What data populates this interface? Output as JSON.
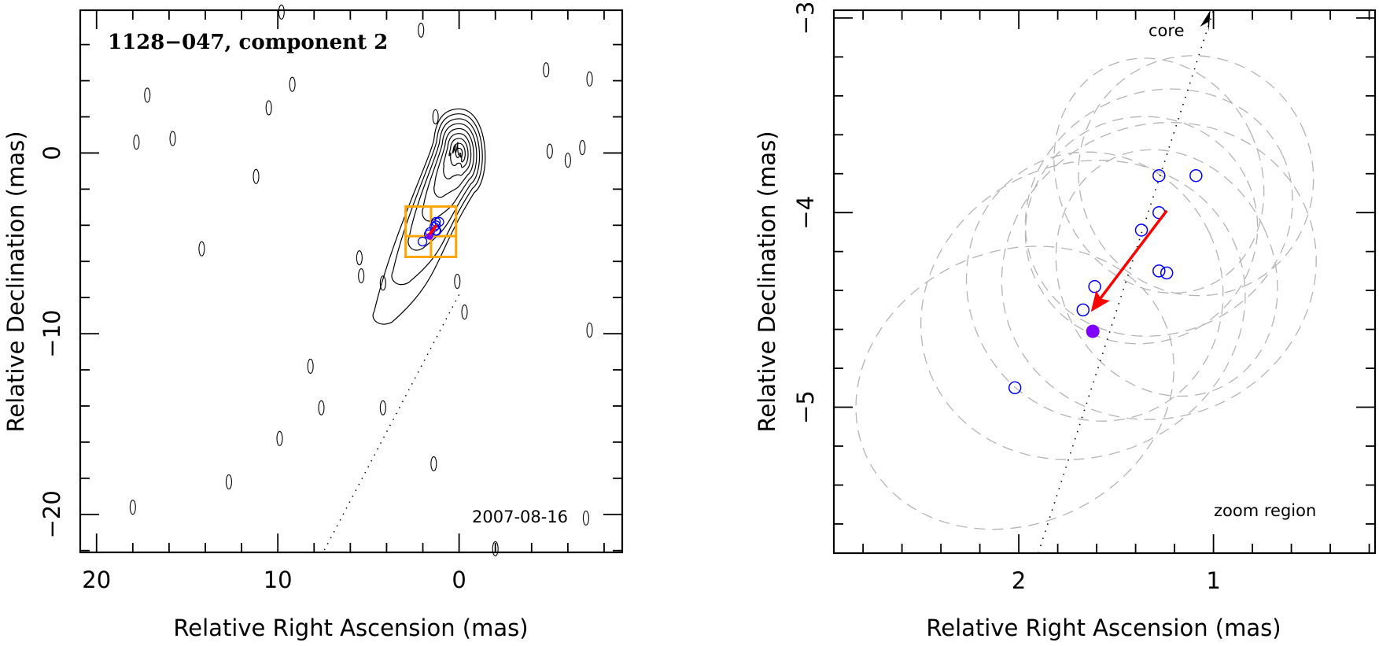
{
  "chart_data": [
    {
      "type": "scatter",
      "name": "overview-map",
      "title": "1128−047, component 2",
      "xlabel": "Relative Right Ascension (mas)",
      "ylabel": "Relative Declination (mas)",
      "xlim": [
        20.9,
        -9.0
      ],
      "ylim": [
        -22.1,
        7.9
      ],
      "xticks": [
        20,
        10,
        0
      ],
      "xtick_labels": [
        "20",
        "10",
        "0"
      ],
      "xminor_step": 2,
      "yticks": [
        0,
        -10,
        -20
      ],
      "ytick_labels": [
        "0",
        "−10",
        "−20"
      ],
      "yminor_step": 2,
      "annotation": "2007-08-16",
      "core": {
        "x": 0,
        "y": 0
      },
      "contour_levels": 9,
      "jet_direction_line": {
        "from": [
          0,
          0
        ],
        "to": [
          7.5,
          -22.1
        ]
      },
      "zoom_box": {
        "x_range": [
          2.95,
          0.17
        ],
        "y_range": [
          -2.96,
          -5.75
        ],
        "cross": [
          1.55,
          -4.6
        ]
      },
      "isolated_blobs": [
        [
          17.2,
          3.2
        ],
        [
          15.8,
          0.8
        ],
        [
          17.8,
          0.6
        ],
        [
          10.5,
          2.5
        ],
        [
          11.2,
          -1.3
        ],
        [
          9.2,
          3.8
        ],
        [
          14.2,
          -5.3
        ],
        [
          5.5,
          -5.8
        ],
        [
          5.4,
          -6.8
        ],
        [
          4.2,
          -7.2
        ],
        [
          1.3,
          2.0
        ],
        [
          0.1,
          -7.1
        ],
        [
          -0.3,
          -8.8
        ],
        [
          8.2,
          -11.8
        ],
        [
          7.6,
          -14.1
        ],
        [
          9.9,
          -15.8
        ],
        [
          12.7,
          -18.2
        ],
        [
          18.0,
          -19.6
        ],
        [
          4.2,
          -14.1
        ],
        [
          1.4,
          -17.2
        ],
        [
          -2.0,
          -21.9
        ],
        [
          -4.8,
          4.6
        ],
        [
          -5.0,
          0.1
        ],
        [
          -6.0,
          -0.4
        ],
        [
          -6.8,
          0.3
        ],
        [
          -7.2,
          4.1
        ],
        [
          -7.2,
          -9.8
        ],
        [
          -7.0,
          -20.2
        ],
        [
          2.1,
          6.8
        ],
        [
          9.8,
          7.8
        ]
      ],
      "components": [
        {
          "x": 1.28,
          "y": -3.81
        },
        {
          "x": 1.09,
          "y": -3.81
        },
        {
          "x": 1.28,
          "y": -4.0
        },
        {
          "x": 1.37,
          "y": -4.09
        },
        {
          "x": 1.28,
          "y": -4.3
        },
        {
          "x": 1.24,
          "y": -4.31
        },
        {
          "x": 1.61,
          "y": -4.38
        },
        {
          "x": 1.67,
          "y": -4.5
        },
        {
          "x": 2.02,
          "y": -4.9
        }
      ],
      "current_position": {
        "x": 1.62,
        "y": -4.61
      },
      "motion_arrow": {
        "from": [
          1.24,
          -3.99
        ],
        "to": [
          1.63,
          -4.51
        ]
      }
    },
    {
      "type": "scatter",
      "name": "zoom-region",
      "title": "",
      "xlabel": "Relative Right Ascension (mas)",
      "ylabel": "Relative Declination (mas)",
      "xlim": [
        2.95,
        0.17
      ],
      "ylim": [
        -5.75,
        -2.96
      ],
      "xticks": [
        2,
        1
      ],
      "xtick_labels": [
        "2",
        "1"
      ],
      "xminor_step": 0.2,
      "yticks": [
        -3,
        -4,
        -5
      ],
      "ytick_labels": [
        "−3",
        "−4",
        "−5"
      ],
      "yminor_step": 0.2,
      "annotation": "zoom region",
      "core_label": "core",
      "jet_direction_line": {
        "from": [
          1.9,
          -5.75
        ],
        "to": [
          1.0,
          -2.96
        ]
      },
      "components": [
        {
          "x": 1.28,
          "y": -3.81,
          "err_rx": 0.52,
          "err_ry": 0.62
        },
        {
          "x": 1.09,
          "y": -3.81,
          "err_rx": 0.6,
          "err_ry": 0.62
        },
        {
          "x": 1.28,
          "y": -4.0,
          "err_rx": 0.7,
          "err_ry": 0.62
        },
        {
          "x": 1.37,
          "y": -4.09,
          "err_rx": 0.6,
          "err_ry": 0.58
        },
        {
          "x": 1.28,
          "y": -4.3,
          "err_rx": 0.82,
          "err_ry": 0.75
        },
        {
          "x": 1.24,
          "y": -4.31,
          "err_rx": 0.55,
          "err_ry": 0.65
        },
        {
          "x": 1.61,
          "y": -4.38,
          "err_rx": 0.65,
          "err_ry": 0.7
        },
        {
          "x": 1.67,
          "y": -4.5,
          "err_rx": 0.85,
          "err_ry": 0.75
        },
        {
          "x": 2.02,
          "y": -4.9,
          "err_rx": 0.84,
          "err_ry": 0.7
        }
      ],
      "current_position": {
        "x": 1.62,
        "y": -4.61
      },
      "motion_arrow": {
        "from": [
          1.24,
          -3.99
        ],
        "to": [
          1.63,
          -4.51
        ]
      }
    }
  ],
  "colors": {
    "component_marker": "#0000ff",
    "current_marker": "#7f00ff",
    "motion_arrow": "#ff0000",
    "zoom_box": "#ffa500",
    "error_ellipse": "#b4b4b4",
    "axes": "#000000"
  }
}
